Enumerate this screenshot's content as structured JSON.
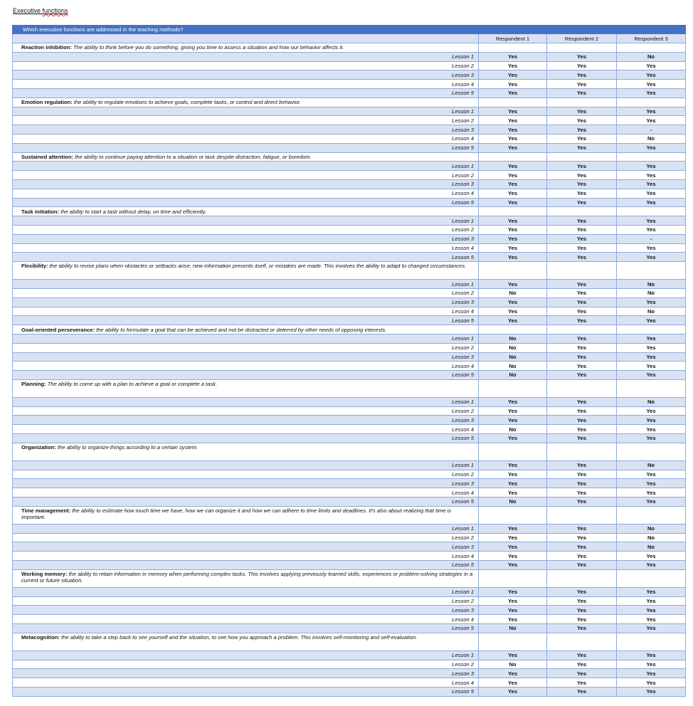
{
  "document": {
    "title_part1": "Executive ",
    "title_part2": "functions"
  },
  "table": {
    "title": "Which executive functions are addressed in the teaching methods?",
    "respondents": [
      "Respondent 1",
      "Respondent 2",
      "Respondent 3"
    ],
    "lesson_labels": [
      "Lesson 1",
      "Lesson 2",
      "Lesson 3",
      "Lesson 4",
      "Lesson 5"
    ],
    "categories": [
      {
        "name": "Reaction inhibition:",
        "description": " The ability to think before you do something, giving you time to assess a situation and how our behavior affects it.",
        "tall": false,
        "answers": [
          [
            "Yes",
            "Yes",
            "No"
          ],
          [
            "Yes",
            "Yes",
            "Yes"
          ],
          [
            "Yes",
            "Yes",
            "Yes"
          ],
          [
            "Yes",
            "Yes",
            "Yes"
          ],
          [
            "Yes",
            "Yes",
            "Yes"
          ]
        ]
      },
      {
        "name": "Emotion regulation:",
        "description": " the ability to regulate emotions to achieve goals, complete tasks, or control and direct behavior.",
        "tall": false,
        "answers": [
          [
            "Yes",
            "Yes",
            "Yes"
          ],
          [
            "Yes",
            "Yes",
            "Yes"
          ],
          [
            "Yes",
            "Yes",
            "-"
          ],
          [
            "Yes",
            "Yes",
            "No"
          ],
          [
            "Yes",
            "Yes",
            "Yes"
          ]
        ]
      },
      {
        "name": "Sustained attention:",
        "description": " the ability to continue paying attention to a situation or task despite distraction, fatigue, or boredom.",
        "tall": false,
        "answers": [
          [
            "Yes",
            "Yes",
            "Yes"
          ],
          [
            "Yes",
            "Yes",
            "Yes"
          ],
          [
            "Yes",
            "Yes",
            "Yes"
          ],
          [
            "Yes",
            "Yes",
            "Yes"
          ],
          [
            "Yes",
            "Yes",
            "Yes"
          ]
        ]
      },
      {
        "name": "Task initiation:",
        "description": " the ability to start a task without delay, on time and efficiently.",
        "tall": false,
        "answers": [
          [
            "Yes",
            "Yes",
            "Yes"
          ],
          [
            "Yes",
            "Yes",
            "Yes"
          ],
          [
            "Yes",
            "Yes",
            "-"
          ],
          [
            "Yes",
            "Yes",
            "Yes"
          ],
          [
            "Yes",
            "Yes",
            "Yes"
          ]
        ]
      },
      {
        "name": "Flexibility:",
        "description": " the ability to revise plans when obstacles or setbacks arise, new information presents itself, or mistakes are made. This involves the ability to adapt to changed circumstances.",
        "tall": true,
        "answers": [
          [
            "Yes",
            "Yes",
            "No"
          ],
          [
            "No",
            "Yes",
            "No"
          ],
          [
            "Yes",
            "Yes",
            "Yes"
          ],
          [
            "Yes",
            "Yes",
            "No"
          ],
          [
            "Yes",
            "Yes",
            "Yes"
          ]
        ]
      },
      {
        "name": "Goal-oriented perseverance:",
        "description": " the ability to formulate a goal that can be achieved and not be distracted or deterred by other needs of opposing interests.",
        "tall": false,
        "answers": [
          [
            "No",
            "Yes",
            "Yes"
          ],
          [
            "No",
            "Yes",
            "Yes"
          ],
          [
            "No",
            "Yes",
            "Yes"
          ],
          [
            "No",
            "Yes",
            "Yes"
          ],
          [
            "No",
            "Yes",
            "Yes"
          ]
        ]
      },
      {
        "name": "Planning:",
        "description": " The ability to come up with a plan to achieve a goal or complete a task.",
        "tall": true,
        "answers": [
          [
            "Yes",
            "Yes",
            "No"
          ],
          [
            "Yes",
            "Yes",
            "Yes"
          ],
          [
            "Yes",
            "Yes",
            "Yes"
          ],
          [
            "No",
            "Yes",
            "Yes"
          ],
          [
            "Yes",
            "Yes",
            "Yes"
          ]
        ]
      },
      {
        "name": "Organization:",
        "description": " the ability to organize things according to a certain system.",
        "tall": true,
        "answers": [
          [
            "Yes",
            "Yes",
            "No"
          ],
          [
            "Yes",
            "Yes",
            "Yes"
          ],
          [
            "Yes",
            "Yes",
            "Yes"
          ],
          [
            "Yes",
            "Yes",
            "Yes"
          ],
          [
            "No",
            "Yes",
            "Yes"
          ]
        ]
      },
      {
        "name": "Time management:",
        "description": " the ability to estimate how much time we have, how we can organize it and how we can adhere to time limits and deadlines. It's also about realizing that time is important.",
        "tall": true,
        "answers": [
          [
            "Yes",
            "Yes",
            "No"
          ],
          [
            "Yes",
            "Yes",
            "No"
          ],
          [
            "Yes",
            "Yes",
            "No"
          ],
          [
            "Yes",
            "Yes",
            "Yes"
          ],
          [
            "Yes",
            "Yes",
            "Yes"
          ]
        ]
      },
      {
        "name": "Working memory:",
        "description": " the ability to retain information in memory when performing complex tasks. This involves applying previously learned skills, experiences or problem-solving strategies in a current or future situation.",
        "tall": true,
        "answers": [
          [
            "Yes",
            "Yes",
            "Yes"
          ],
          [
            "Yes",
            "Yes",
            "Yes"
          ],
          [
            "Yes",
            "Yes",
            "Yes"
          ],
          [
            "Yes",
            "Yes",
            "Yes"
          ],
          [
            "No",
            "Yes",
            "Yes"
          ]
        ]
      },
      {
        "name": "Metacognition:",
        "description": " the ability to take a step back to see yourself and the situation, to see how you approach a problem. This involves self-monitoring and self-evaluation.",
        "tall": true,
        "answers": [
          [
            "Yes",
            "Yes",
            "Yes"
          ],
          [
            "No",
            "Yes",
            "Yes"
          ],
          [
            "Yes",
            "Yes",
            "Yes"
          ],
          [
            "Yes",
            "Yes",
            "Yes"
          ],
          [
            "Yes",
            "Yes",
            "Yes"
          ]
        ]
      }
    ]
  },
  "colors": {
    "header": "#4472c4",
    "shade": "#d9e2f3",
    "border": "#8eaadb"
  }
}
